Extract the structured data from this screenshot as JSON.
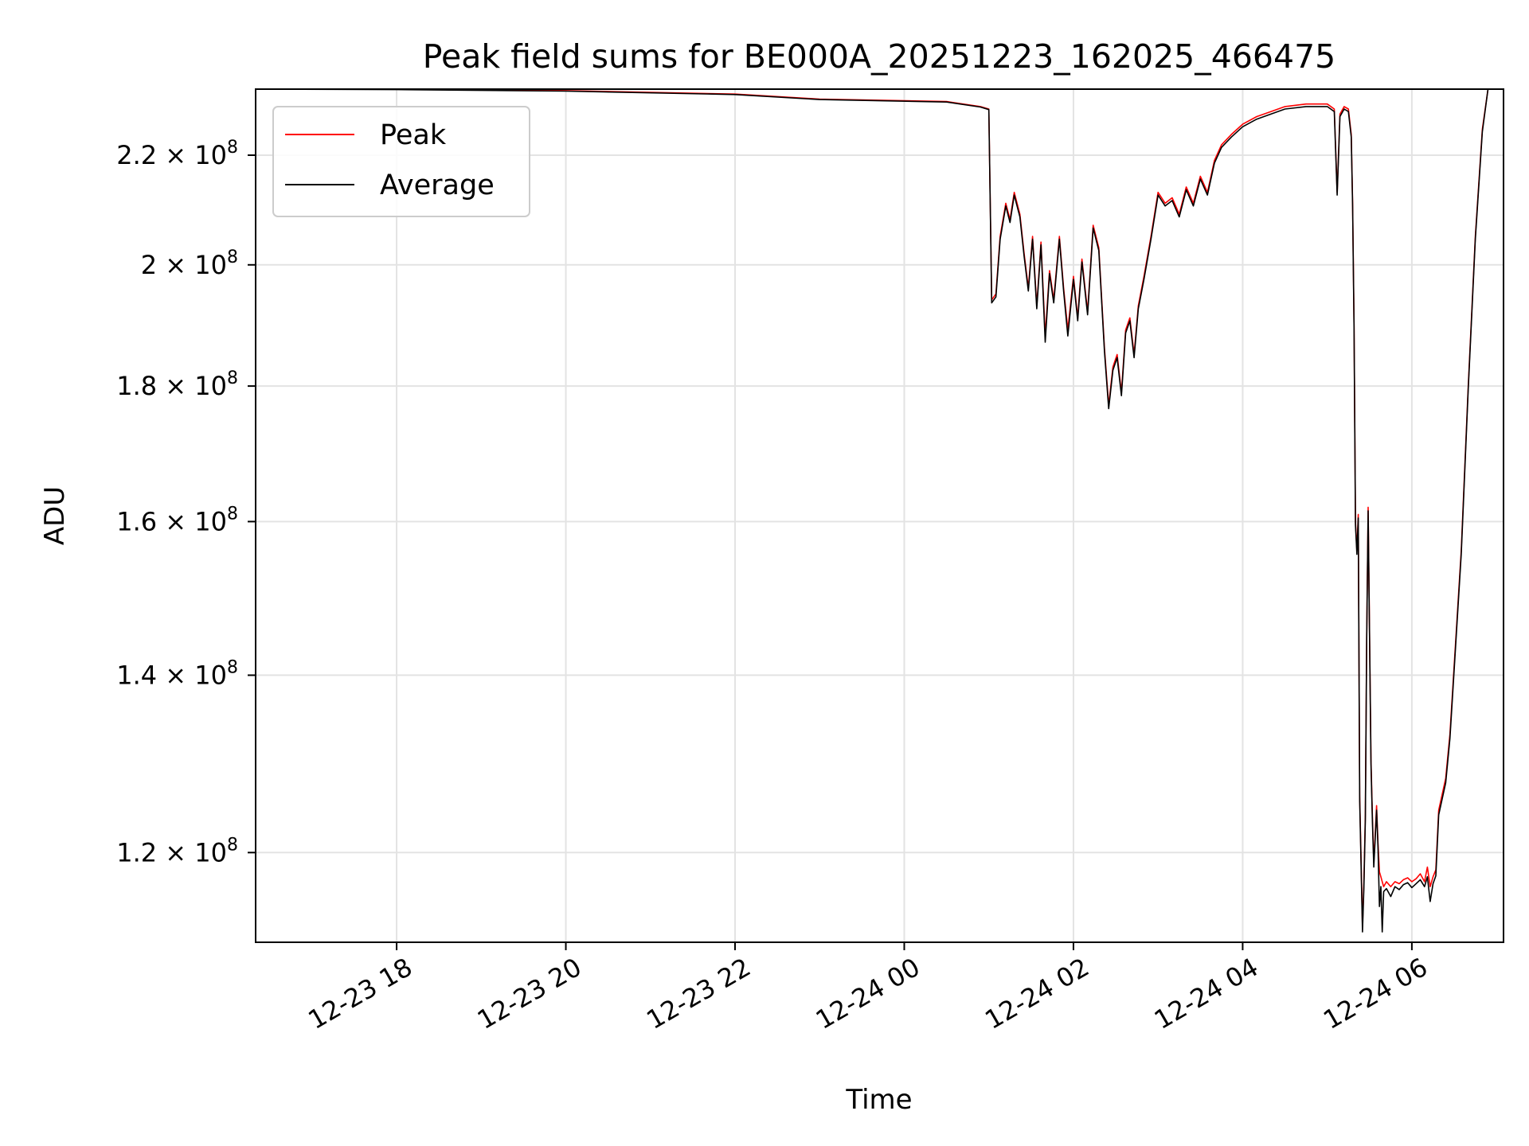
{
  "chart_data": {
    "type": "line",
    "title": "Peak field sums for BE000A_20251223_162025_466475",
    "xlabel": "Time",
    "ylabel": "ADU",
    "x_ticks": [
      "12-23 18",
      "12-23 20",
      "12-23 22",
      "12-24 00",
      "12-24 02",
      "12-24 04",
      "12-24 06"
    ],
    "y_ticks": [
      {
        "value": 120000000,
        "mantissa": "1.2",
        "exp": "8"
      },
      {
        "value": 140000000,
        "mantissa": "1.4",
        "exp": "8"
      },
      {
        "value": 160000000,
        "mantissa": "1.6",
        "exp": "8"
      },
      {
        "value": 180000000,
        "mantissa": "1.8",
        "exp": "8"
      },
      {
        "value": 200000000,
        "mantissa": "2",
        "exp": "8"
      },
      {
        "value": 220000000,
        "mantissa": "2.2",
        "exp": "8"
      }
    ],
    "y_scale": "log",
    "xlim": [
      "2025-12-23 16:20",
      "2025-12-24 07:05"
    ],
    "ylim": [
      111000000,
      233000000
    ],
    "grid": true,
    "legend_position": "upper-left",
    "series": [
      {
        "name": "Peak",
        "color": "#ff0000",
        "points": [
          [
            "2025-12-23 16:20",
            233000000
          ],
          [
            "2025-12-23 18:00",
            233000000
          ],
          [
            "2025-12-23 20:00",
            232700000
          ],
          [
            "2025-12-23 22:00",
            232000000
          ],
          [
            "2025-12-23 23:00",
            231000000
          ],
          [
            "2025-12-24 00:30",
            230500000
          ],
          [
            "2025-12-24 00:54",
            229500000
          ],
          [
            "2025-12-24 01:00",
            229000000
          ],
          [
            "2025-12-24 01:02",
            194000000
          ],
          [
            "2025-12-24 01:05",
            195000000
          ],
          [
            "2025-12-24 01:08",
            205000000
          ],
          [
            "2025-12-24 01:12",
            211000000
          ],
          [
            "2025-12-24 01:15",
            208000000
          ],
          [
            "2025-12-24 01:18",
            213000000
          ],
          [
            "2025-12-24 01:22",
            209000000
          ],
          [
            "2025-12-24 01:25",
            202000000
          ],
          [
            "2025-12-24 01:28",
            196000000
          ],
          [
            "2025-12-24 01:31",
            205000000
          ],
          [
            "2025-12-24 01:34",
            193000000
          ],
          [
            "2025-12-24 01:37",
            204000000
          ],
          [
            "2025-12-24 01:40",
            188000000
          ],
          [
            "2025-12-24 01:43",
            199000000
          ],
          [
            "2025-12-24 01:46",
            194000000
          ],
          [
            "2025-12-24 01:50",
            205000000
          ],
          [
            "2025-12-24 01:53",
            196000000
          ],
          [
            "2025-12-24 01:56",
            189000000
          ],
          [
            "2025-12-24 02:00",
            198000000
          ],
          [
            "2025-12-24 02:03",
            191000000
          ],
          [
            "2025-12-24 02:06",
            201000000
          ],
          [
            "2025-12-24 02:10",
            192000000
          ],
          [
            "2025-12-24 02:14",
            207000000
          ],
          [
            "2025-12-24 02:18",
            203000000
          ],
          [
            "2025-12-24 02:22",
            186000000
          ],
          [
            "2025-12-24 02:25",
            177000000
          ],
          [
            "2025-12-24 02:28",
            183000000
          ],
          [
            "2025-12-24 02:31",
            185000000
          ],
          [
            "2025-12-24 02:34",
            179000000
          ],
          [
            "2025-12-24 02:37",
            189000000
          ],
          [
            "2025-12-24 02:40",
            191000000
          ],
          [
            "2025-12-24 02:43",
            185000000
          ],
          [
            "2025-12-24 02:46",
            193000000
          ],
          [
            "2025-12-24 02:50",
            198000000
          ],
          [
            "2025-12-24 02:55",
            205000000
          ],
          [
            "2025-12-24 03:00",
            213000000
          ],
          [
            "2025-12-24 03:05",
            211000000
          ],
          [
            "2025-12-24 03:10",
            212000000
          ],
          [
            "2025-12-24 03:15",
            209000000
          ],
          [
            "2025-12-24 03:20",
            214000000
          ],
          [
            "2025-12-24 03:25",
            211000000
          ],
          [
            "2025-12-24 03:30",
            216000000
          ],
          [
            "2025-12-24 03:35",
            213000000
          ],
          [
            "2025-12-24 03:40",
            219000000
          ],
          [
            "2025-12-24 03:45",
            222000000
          ],
          [
            "2025-12-24 03:52",
            224000000
          ],
          [
            "2025-12-24 04:00",
            226000000
          ],
          [
            "2025-12-24 04:10",
            227500000
          ],
          [
            "2025-12-24 04:20",
            228500000
          ],
          [
            "2025-12-24 04:30",
            229500000
          ],
          [
            "2025-12-24 04:45",
            230000000
          ],
          [
            "2025-12-24 05:00",
            230000000
          ],
          [
            "2025-12-24 05:05",
            229000000
          ],
          [
            "2025-12-24 05:07",
            213000000
          ],
          [
            "2025-12-24 05:09",
            228000000
          ],
          [
            "2025-12-24 05:12",
            229500000
          ],
          [
            "2025-12-24 05:15",
            229000000
          ],
          [
            "2025-12-24 05:17",
            224000000
          ],
          [
            "2025-12-24 05:18",
            211000000
          ],
          [
            "2025-12-24 05:19",
            190000000
          ],
          [
            "2025-12-24 05:20",
            160000000
          ],
          [
            "2025-12-24 05:21",
            156000000
          ],
          [
            "2025-12-24 05:22",
            161000000
          ],
          [
            "2025-12-24 05:23",
            126000000
          ],
          [
            "2025-12-24 05:24",
            119000000
          ],
          [
            "2025-12-24 05:25",
            112500000
          ],
          [
            "2025-12-24 05:26",
            117000000
          ],
          [
            "2025-12-24 05:27",
            124000000
          ],
          [
            "2025-12-24 05:28",
            145000000
          ],
          [
            "2025-12-24 05:29",
            162000000
          ],
          [
            "2025-12-24 05:30",
            145000000
          ],
          [
            "2025-12-24 05:31",
            130000000
          ],
          [
            "2025-12-24 05:32",
            124000000
          ],
          [
            "2025-12-24 05:33",
            119000000
          ],
          [
            "2025-12-24 05:34",
            122000000
          ],
          [
            "2025-12-24 05:35",
            125000000
          ],
          [
            "2025-12-24 05:36",
            121000000
          ],
          [
            "2025-12-24 05:37",
            118000000
          ],
          [
            "2025-12-24 05:38",
            117500000
          ],
          [
            "2025-12-24 05:39",
            117000000
          ],
          [
            "2025-12-24 05:40",
            116500000
          ],
          [
            "2025-12-24 05:42",
            117000000
          ],
          [
            "2025-12-24 05:45",
            116500000
          ],
          [
            "2025-12-24 05:48",
            117000000
          ],
          [
            "2025-12-24 05:51",
            116800000
          ],
          [
            "2025-12-24 05:54",
            117200000
          ],
          [
            "2025-12-24 05:57",
            117400000
          ],
          [
            "2025-12-24 06:00",
            117000000
          ],
          [
            "2025-12-24 06:03",
            117300000
          ],
          [
            "2025-12-24 06:06",
            117800000
          ],
          [
            "2025-12-24 06:09",
            117000000
          ],
          [
            "2025-12-24 06:11",
            118500000
          ],
          [
            "2025-12-24 06:13",
            116500000
          ],
          [
            "2025-12-24 06:15",
            117500000
          ],
          [
            "2025-12-24 06:17",
            118200000
          ],
          [
            "2025-12-24 06:19",
            124500000
          ],
          [
            "2025-12-24 06:24",
            128000000
          ],
          [
            "2025-12-24 06:27",
            133000000
          ],
          [
            "2025-12-24 06:31",
            144000000
          ],
          [
            "2025-12-24 06:35",
            156000000
          ],
          [
            "2025-12-24 06:40",
            180000000
          ],
          [
            "2025-12-24 06:45",
            205000000
          ],
          [
            "2025-12-24 06:50",
            225000000
          ],
          [
            "2025-12-24 06:54",
            233000000
          ],
          [
            "2025-12-24 07:05",
            233000000
          ]
        ]
      },
      {
        "name": "Average",
        "color": "#000000",
        "points": [
          [
            "2025-12-23 16:20",
            233000000
          ],
          [
            "2025-12-23 18:00",
            232900000
          ],
          [
            "2025-12-23 20:00",
            232600000
          ],
          [
            "2025-12-23 22:00",
            231900000
          ],
          [
            "2025-12-23 23:00",
            230900000
          ],
          [
            "2025-12-24 00:30",
            230400000
          ],
          [
            "2025-12-24 00:54",
            229400000
          ],
          [
            "2025-12-24 01:00",
            228900000
          ],
          [
            "2025-12-24 01:02",
            193500000
          ],
          [
            "2025-12-24 01:05",
            194500000
          ],
          [
            "2025-12-24 01:08",
            204500000
          ],
          [
            "2025-12-24 01:12",
            210500000
          ],
          [
            "2025-12-24 01:15",
            207500000
          ],
          [
            "2025-12-24 01:18",
            212500000
          ],
          [
            "2025-12-24 01:22",
            208500000
          ],
          [
            "2025-12-24 01:25",
            201500000
          ],
          [
            "2025-12-24 01:28",
            195500000
          ],
          [
            "2025-12-24 01:31",
            204500000
          ],
          [
            "2025-12-24 01:34",
            192500000
          ],
          [
            "2025-12-24 01:37",
            203500000
          ],
          [
            "2025-12-24 01:40",
            187000000
          ],
          [
            "2025-12-24 01:43",
            198500000
          ],
          [
            "2025-12-24 01:46",
            193500000
          ],
          [
            "2025-12-24 01:50",
            204500000
          ],
          [
            "2025-12-24 01:53",
            195500000
          ],
          [
            "2025-12-24 01:56",
            188000000
          ],
          [
            "2025-12-24 02:00",
            197500000
          ],
          [
            "2025-12-24 02:03",
            190500000
          ],
          [
            "2025-12-24 02:06",
            200500000
          ],
          [
            "2025-12-24 02:10",
            191500000
          ],
          [
            "2025-12-24 02:14",
            206500000
          ],
          [
            "2025-12-24 02:18",
            202500000
          ],
          [
            "2025-12-24 02:22",
            185500000
          ],
          [
            "2025-12-24 02:25",
            176500000
          ],
          [
            "2025-12-24 02:28",
            182500000
          ],
          [
            "2025-12-24 02:31",
            184500000
          ],
          [
            "2025-12-24 02:34",
            178500000
          ],
          [
            "2025-12-24 02:37",
            188500000
          ],
          [
            "2025-12-24 02:40",
            190500000
          ],
          [
            "2025-12-24 02:43",
            184500000
          ],
          [
            "2025-12-24 02:46",
            192500000
          ],
          [
            "2025-12-24 02:50",
            197500000
          ],
          [
            "2025-12-24 02:55",
            204500000
          ],
          [
            "2025-12-24 03:00",
            212500000
          ],
          [
            "2025-12-24 03:05",
            210500000
          ],
          [
            "2025-12-24 03:10",
            211500000
          ],
          [
            "2025-12-24 03:15",
            208500000
          ],
          [
            "2025-12-24 03:20",
            213500000
          ],
          [
            "2025-12-24 03:25",
            210500000
          ],
          [
            "2025-12-24 03:30",
            215500000
          ],
          [
            "2025-12-24 03:35",
            212500000
          ],
          [
            "2025-12-24 03:40",
            218500000
          ],
          [
            "2025-12-24 03:45",
            221500000
          ],
          [
            "2025-12-24 03:52",
            223500000
          ],
          [
            "2025-12-24 04:00",
            225500000
          ],
          [
            "2025-12-24 04:10",
            227000000
          ],
          [
            "2025-12-24 04:20",
            228000000
          ],
          [
            "2025-12-24 04:30",
            229000000
          ],
          [
            "2025-12-24 04:45",
            229500000
          ],
          [
            "2025-12-24 05:00",
            229500000
          ],
          [
            "2025-12-24 05:05",
            228500000
          ],
          [
            "2025-12-24 05:07",
            212500000
          ],
          [
            "2025-12-24 05:09",
            227500000
          ],
          [
            "2025-12-24 05:12",
            229000000
          ],
          [
            "2025-12-24 05:15",
            228500000
          ],
          [
            "2025-12-24 05:17",
            223500000
          ],
          [
            "2025-12-24 05:18",
            210500000
          ],
          [
            "2025-12-24 05:19",
            189500000
          ],
          [
            "2025-12-24 05:20",
            159500000
          ],
          [
            "2025-12-24 05:21",
            155500000
          ],
          [
            "2025-12-24 05:22",
            160500000
          ],
          [
            "2025-12-24 05:23",
            125500000
          ],
          [
            "2025-12-24 05:24",
            118500000
          ],
          [
            "2025-12-24 05:25",
            112000000
          ],
          [
            "2025-12-24 05:26",
            116500000
          ],
          [
            "2025-12-24 05:27",
            123500000
          ],
          [
            "2025-12-24 05:28",
            144500000
          ],
          [
            "2025-12-24 05:29",
            161500000
          ],
          [
            "2025-12-24 05:30",
            144500000
          ],
          [
            "2025-12-24 05:31",
            129500000
          ],
          [
            "2025-12-24 05:32",
            123500000
          ],
          [
            "2025-12-24 05:33",
            118500000
          ],
          [
            "2025-12-24 05:34",
            121500000
          ],
          [
            "2025-12-24 05:35",
            124500000
          ],
          [
            "2025-12-24 05:36",
            120500000
          ],
          [
            "2025-12-24 05:37",
            114500000
          ],
          [
            "2025-12-24 05:38",
            116500000
          ],
          [
            "2025-12-24 05:39",
            112000000
          ],
          [
            "2025-12-24 05:40",
            116000000
          ],
          [
            "2025-12-24 05:42",
            116300000
          ],
          [
            "2025-12-24 05:45",
            115500000
          ],
          [
            "2025-12-24 05:48",
            116500000
          ],
          [
            "2025-12-24 05:51",
            116200000
          ],
          [
            "2025-12-24 05:54",
            116700000
          ],
          [
            "2025-12-24 05:57",
            116900000
          ],
          [
            "2025-12-24 06:00",
            116400000
          ],
          [
            "2025-12-24 06:03",
            116800000
          ],
          [
            "2025-12-24 06:06",
            117200000
          ],
          [
            "2025-12-24 06:09",
            116500000
          ],
          [
            "2025-12-24 06:11",
            117500000
          ],
          [
            "2025-12-24 06:13",
            115000000
          ],
          [
            "2025-12-24 06:15",
            116800000
          ],
          [
            "2025-12-24 06:17",
            117600000
          ],
          [
            "2025-12-24 06:19",
            124000000
          ],
          [
            "2025-12-24 06:24",
            127500000
          ],
          [
            "2025-12-24 06:27",
            132500000
          ],
          [
            "2025-12-24 06:31",
            143500000
          ],
          [
            "2025-12-24 06:35",
            155500000
          ],
          [
            "2025-12-24 06:40",
            179500000
          ],
          [
            "2025-12-24 06:45",
            204500000
          ],
          [
            "2025-12-24 06:50",
            224500000
          ],
          [
            "2025-12-24 06:54",
            233000000
          ],
          [
            "2025-12-24 07:05",
            233000000
          ]
        ]
      }
    ]
  }
}
